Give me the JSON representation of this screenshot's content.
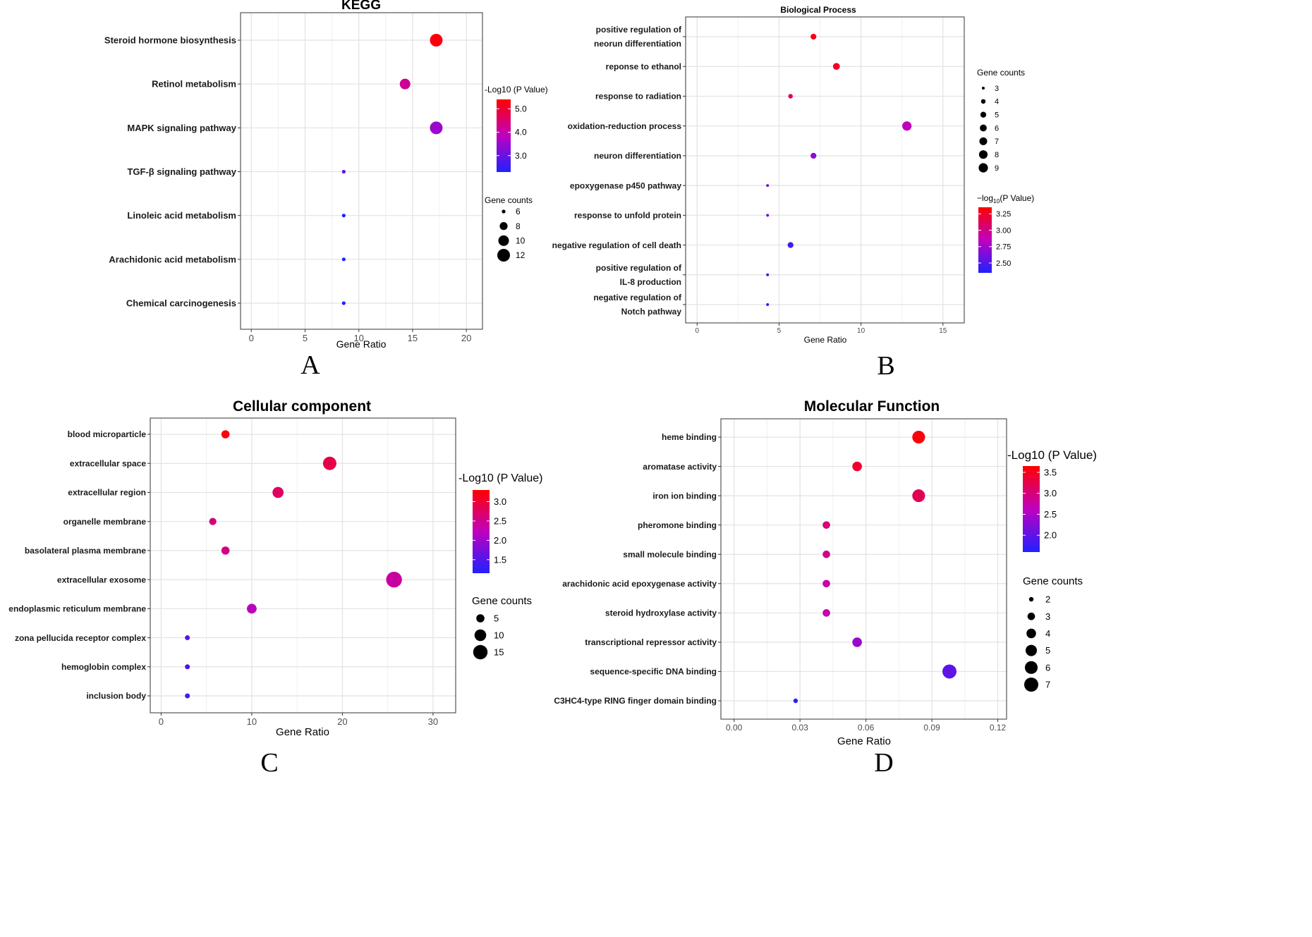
{
  "chart_data": [
    {
      "type": "scatter",
      "panel_letter": "A",
      "title": "KEGG",
      "xlabel": "Gene Ratio",
      "ylabel": "",
      "xlim": [
        -1,
        21.5
      ],
      "xticks": [
        0,
        5,
        10,
        15,
        20
      ],
      "grid": true,
      "legend_position": "right",
      "categories": [
        "Steroid hormone biosynthesis",
        "Retinol metabolism",
        "MAPK signaling pathway",
        "TGF-β signaling pathway",
        "Linoleic acid metabolism",
        "Arachidonic acid metabolism",
        "Chemical carcinogenesis"
      ],
      "gene_ratio": [
        17.2,
        14.3,
        17.2,
        8.6,
        8.6,
        8.6,
        8.6
      ],
      "gene_counts": [
        12,
        10,
        12,
        6,
        6,
        6,
        6
      ],
      "neg_log10_p": [
        5.3,
        4.2,
        3.5,
        2.9,
        2.4,
        2.4,
        2.3
      ],
      "color_legend": {
        "title": "-Log10 (P Value)",
        "min": 2.3,
        "max": 5.4,
        "ticks": [
          5.0,
          4.0,
          3.0
        ],
        "tick_labels": [
          "5.0",
          "4.0",
          "3.0"
        ]
      },
      "size_legend": {
        "title": "Gene counts",
        "values": [
          6,
          8,
          10,
          12
        ]
      },
      "colors": {
        "high": "#ff0000",
        "mid": "#bf00bf",
        "low": "#2020ff"
      }
    },
    {
      "type": "scatter",
      "panel_letter": "B",
      "title": "Biological Process",
      "xlabel": "Gene Ratio",
      "ylabel": "",
      "xlim": [
        -0.7,
        16.3
      ],
      "xticks": [
        0,
        5,
        10,
        15
      ],
      "grid": true,
      "legend_position": "right",
      "categories": [
        [
          "positive regulation of",
          "neorun differentiation"
        ],
        [
          "reponse to ethanol"
        ],
        [
          "response to radiation"
        ],
        [
          "oxidation-reduction process"
        ],
        [
          "neuron differentiation"
        ],
        [
          "epoxygenase p450 pathway"
        ],
        [
          "response to unfold protein"
        ],
        [
          "negative regulation of cell death"
        ],
        [
          "positive regulation of",
          "IL-8 production"
        ],
        [
          "negative regulation of",
          "Notch pathway"
        ]
      ],
      "gene_ratio": [
        7.1,
        8.5,
        5.7,
        12.8,
        7.1,
        4.3,
        4.3,
        5.7,
        4.3,
        4.3
      ],
      "gene_counts": [
        5,
        6,
        4,
        9,
        5,
        3,
        3,
        5,
        3,
        3
      ],
      "neg_log10_p": [
        3.3,
        3.25,
        3.1,
        2.85,
        2.7,
        2.65,
        2.6,
        2.45,
        2.4,
        2.35
      ],
      "color_legend": {
        "title_prefix": "−log",
        "title_subscript": "10",
        "title_suffix": "(P Value)",
        "min": 2.35,
        "max": 3.35,
        "ticks": [
          3.25,
          3.0,
          2.75,
          2.5
        ],
        "tick_labels": [
          "3.25",
          "3.00",
          "2.75",
          "2.50"
        ]
      },
      "size_legend": {
        "title": "Gene counts",
        "values": [
          3,
          4,
          5,
          6,
          7,
          8,
          9
        ]
      },
      "colors": {
        "high": "#ff0000",
        "mid": "#bf00bf",
        "low": "#2020ff"
      }
    },
    {
      "type": "scatter",
      "panel_letter": "C",
      "title": "Cellular component",
      "xlabel": "Gene Ratio",
      "ylabel": "",
      "xlim": [
        -1.2,
        32.5
      ],
      "xticks": [
        0,
        10,
        20,
        30
      ],
      "grid": true,
      "legend_position": "right",
      "categories": [
        "blood microparticle",
        "extracellular space",
        "extracellular region",
        "organelle membrane",
        "basolateral plasma membrane",
        "extracellular exosome",
        "endoplasmic reticulum membrane",
        "zona pellucida receptor complex",
        "hemoglobin complex",
        "inclusion body"
      ],
      "gene_ratio": [
        7.1,
        18.6,
        12.9,
        5.7,
        7.1,
        25.7,
        10.0,
        2.9,
        2.9,
        2.9
      ],
      "gene_counts": [
        5,
        13,
        9,
        4,
        5,
        18,
        7,
        2,
        2,
        2
      ],
      "neg_log10_p": [
        3.2,
        2.9,
        2.75,
        2.6,
        2.55,
        2.4,
        2.2,
        1.5,
        1.45,
        1.4
      ],
      "color_legend": {
        "title": "-Log10 (P Value)",
        "min": 1.15,
        "max": 3.3,
        "ticks": [
          3.0,
          2.5,
          2.0,
          1.5
        ],
        "tick_labels": [
          "3.0",
          "2.5",
          "2.0",
          "1.5"
        ]
      },
      "size_legend": {
        "title": "Gene counts",
        "values": [
          5,
          10,
          15
        ]
      },
      "colors": {
        "high": "#ff0000",
        "mid": "#bf00bf",
        "low": "#2020ff"
      }
    },
    {
      "type": "scatter",
      "panel_letter": "D",
      "title": "Molecular Function",
      "xlabel": "Gene Ratio",
      "ylabel": "",
      "xlim": [
        -0.006,
        0.124
      ],
      "xticks": [
        0.0,
        0.03,
        0.06,
        0.09,
        0.12
      ],
      "xtick_labels": [
        "0.00",
        "0.03",
        "0.06",
        "0.09",
        "0.12"
      ],
      "grid": true,
      "legend_position": "right",
      "categories": [
        "heme binding",
        "aromatase activity",
        "iron ion binding",
        "pheromone binding",
        "small molecule binding",
        "arachidonic acid epoxygenase activity",
        "steroid hydroxylase activity",
        "transcriptional repressor activity",
        "sequence-specific DNA binding",
        "C3HC4-type RING finger domain binding"
      ],
      "gene_ratio": [
        0.084,
        0.056,
        0.084,
        0.042,
        0.042,
        0.042,
        0.042,
        0.056,
        0.098,
        0.028
      ],
      "gene_counts": [
        6,
        4,
        6,
        3,
        3,
        3,
        3,
        4,
        7,
        2
      ],
      "neg_log10_p": [
        3.6,
        3.4,
        3.2,
        3.0,
        2.9,
        2.75,
        2.7,
        2.4,
        2.0,
        1.7
      ],
      "color_legend": {
        "title": "-Log10 (P Value)",
        "min": 1.6,
        "max": 3.65,
        "ticks": [
          3.5,
          3.0,
          2.5,
          2.0
        ],
        "tick_labels": [
          "3.5",
          "3.0",
          "2.5",
          "2.0"
        ]
      },
      "size_legend": {
        "title": "Gene counts",
        "values": [
          2,
          3,
          4,
          5,
          6,
          7
        ]
      },
      "colors": {
        "high": "#ff0000",
        "mid": "#bf00bf",
        "low": "#2020ff"
      }
    }
  ]
}
